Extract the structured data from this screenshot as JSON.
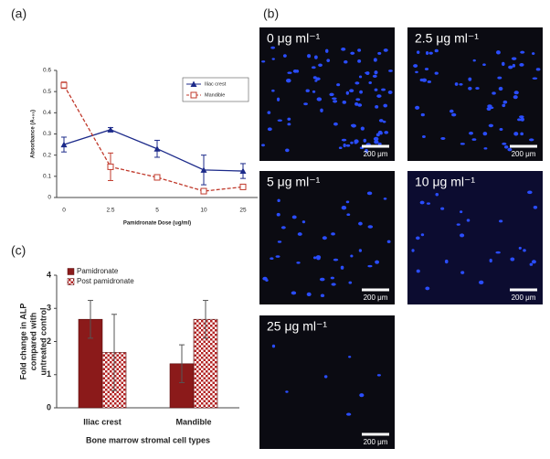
{
  "panels": {
    "b": {
      "label": "(b)",
      "tiles": [
        {
          "caption": "0 μg ml⁻¹",
          "scale": "200 μm"
        },
        {
          "caption": "2.5 μg ml⁻¹",
          "scale": "200 μm"
        },
        {
          "caption": "5 μg ml⁻¹",
          "scale": "200 μm"
        },
        {
          "caption": "10 μg ml⁻¹",
          "scale": "200 μm"
        },
        {
          "caption": "25 μg ml⁻¹",
          "scale": "200 μm"
        }
      ]
    }
  },
  "chart_data": [
    {
      "type": "line",
      "label": "(a)",
      "xlabel": "Pamidronate Dose (ug/ml)",
      "ylabel": "Absorbance (A₄₀₅)",
      "categories": [
        "0",
        "2.5",
        "5",
        "10",
        "25"
      ],
      "ylim": [
        0,
        0.6
      ],
      "yticks": [
        0,
        0.1,
        0.2,
        0.3,
        0.4,
        0.5,
        0.6
      ],
      "legend": "upper right",
      "series": [
        {
          "name": "Iliac crest",
          "color": "#1c2a8a",
          "marker": "triangle",
          "dash": false,
          "values": [
            0.25,
            0.32,
            0.23,
            0.13,
            0.125
          ],
          "errors": [
            0.035,
            0.01,
            0.04,
            0.07,
            0.035
          ]
        },
        {
          "name": "Mandible",
          "color": "#c0392b",
          "marker": "open-square",
          "dash": true,
          "values": [
            0.53,
            0.145,
            0.095,
            0.03,
            0.05
          ],
          "errors": [
            0.015,
            0.065,
            0.01,
            0.01,
            0.01
          ]
        }
      ]
    },
    {
      "type": "bar",
      "label": "(c)",
      "xlabel": "Bone marrow stromal cell types",
      "ylabel": [
        "Fold change in ALP",
        "compared with",
        "untreated control"
      ],
      "categories": [
        "Iliac crest",
        "Mandible"
      ],
      "ylim": [
        0,
        4
      ],
      "yticks": [
        0,
        1,
        2,
        3,
        4
      ],
      "legend": "upper left",
      "series": [
        {
          "name": "Pamidronate",
          "color": "#8b1a1a",
          "pattern": false,
          "values": [
            2.67,
            1.33
          ],
          "errors": [
            0.57,
            0.57
          ]
        },
        {
          "name": "Post pamidronate",
          "color": "#b22222",
          "pattern": true,
          "values": [
            1.67,
            2.67
          ],
          "errors": [
            1.15,
            0.57
          ]
        }
      ]
    }
  ]
}
